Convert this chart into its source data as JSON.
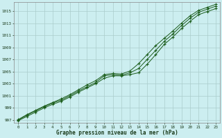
{
  "title": "Graphe pression niveau de la mer (hPa)",
  "background_color": "#cceef0",
  "grid_color": "#aacccc",
  "line_color": "#1a5c1a",
  "hours": [
    0,
    1,
    2,
    3,
    4,
    5,
    6,
    7,
    8,
    9,
    10,
    11,
    12,
    13,
    14,
    15,
    16,
    17,
    18,
    19,
    20,
    21,
    22,
    23
  ],
  "pressure_main": [
    997.0,
    997.8,
    998.5,
    999.2,
    999.8,
    1000.3,
    1001.0,
    1001.8,
    1002.5,
    1003.2,
    1004.3,
    1004.5,
    1004.4,
    1004.8,
    1005.5,
    1007.0,
    1008.5,
    1010.0,
    1011.2,
    1012.6,
    1013.8,
    1014.8,
    1015.3,
    1015.8
  ],
  "pressure_upper": [
    997.1,
    997.9,
    998.6,
    999.3,
    999.9,
    1000.5,
    1001.2,
    1002.0,
    1002.8,
    1003.5,
    1004.5,
    1004.7,
    1004.6,
    1005.1,
    1006.3,
    1007.8,
    1009.3,
    1010.5,
    1011.7,
    1013.0,
    1014.2,
    1015.1,
    1015.6,
    1016.1
  ],
  "pressure_lower": [
    996.9,
    997.6,
    998.3,
    999.0,
    999.6,
    1000.1,
    1000.8,
    1001.6,
    1002.3,
    1003.0,
    1003.9,
    1004.3,
    1004.3,
    1004.5,
    1004.8,
    1006.2,
    1007.8,
    1009.5,
    1010.7,
    1012.1,
    1013.3,
    1014.4,
    1014.9,
    1015.4
  ],
  "ylim_min": 996.5,
  "ylim_max": 1016.5,
  "ytick_min": 997,
  "ytick_max": 1015,
  "ytick_step": 2,
  "xlim_min": -0.5,
  "xlim_max": 23.5
}
